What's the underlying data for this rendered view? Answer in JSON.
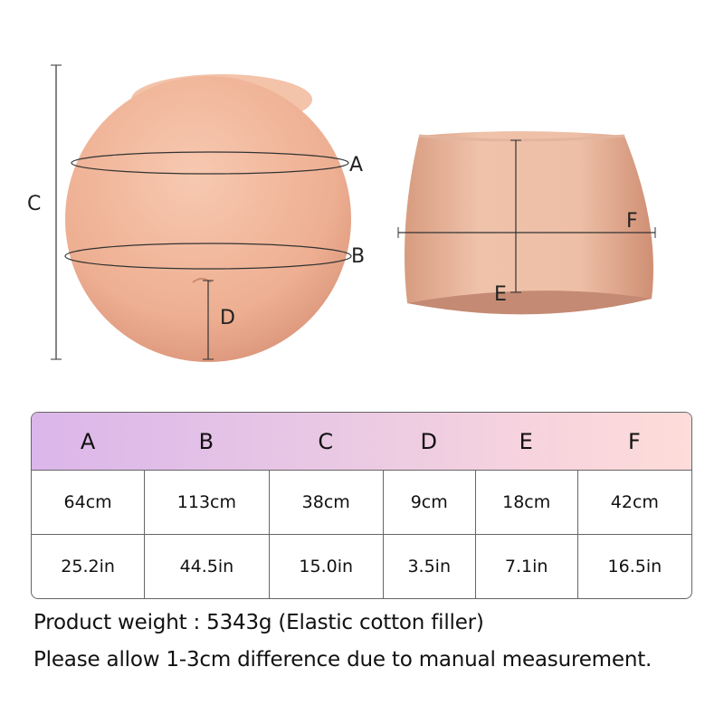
{
  "labels": {
    "a": "A",
    "b": "B",
    "c": "C",
    "d": "D",
    "e": "E",
    "f": "F"
  },
  "table": {
    "headers": [
      "A",
      "B",
      "C",
      "D",
      "E",
      "F"
    ],
    "rows": [
      [
        "64cm",
        "113cm",
        "38cm",
        "9cm",
        "18cm",
        "42cm"
      ],
      [
        "25.2in",
        "44.5in",
        "15.0in",
        "3.5in",
        "7.1in",
        "16.5in"
      ]
    ]
  },
  "weight_text": "Product weight : 5343g (Elastic cotton filler)",
  "note_text": "Please allow 1-3cm difference due to manual measurement.",
  "colors": {
    "skin": "#f0b89c",
    "header_start": "#dbb6ea",
    "header_end": "#fddcd9"
  }
}
